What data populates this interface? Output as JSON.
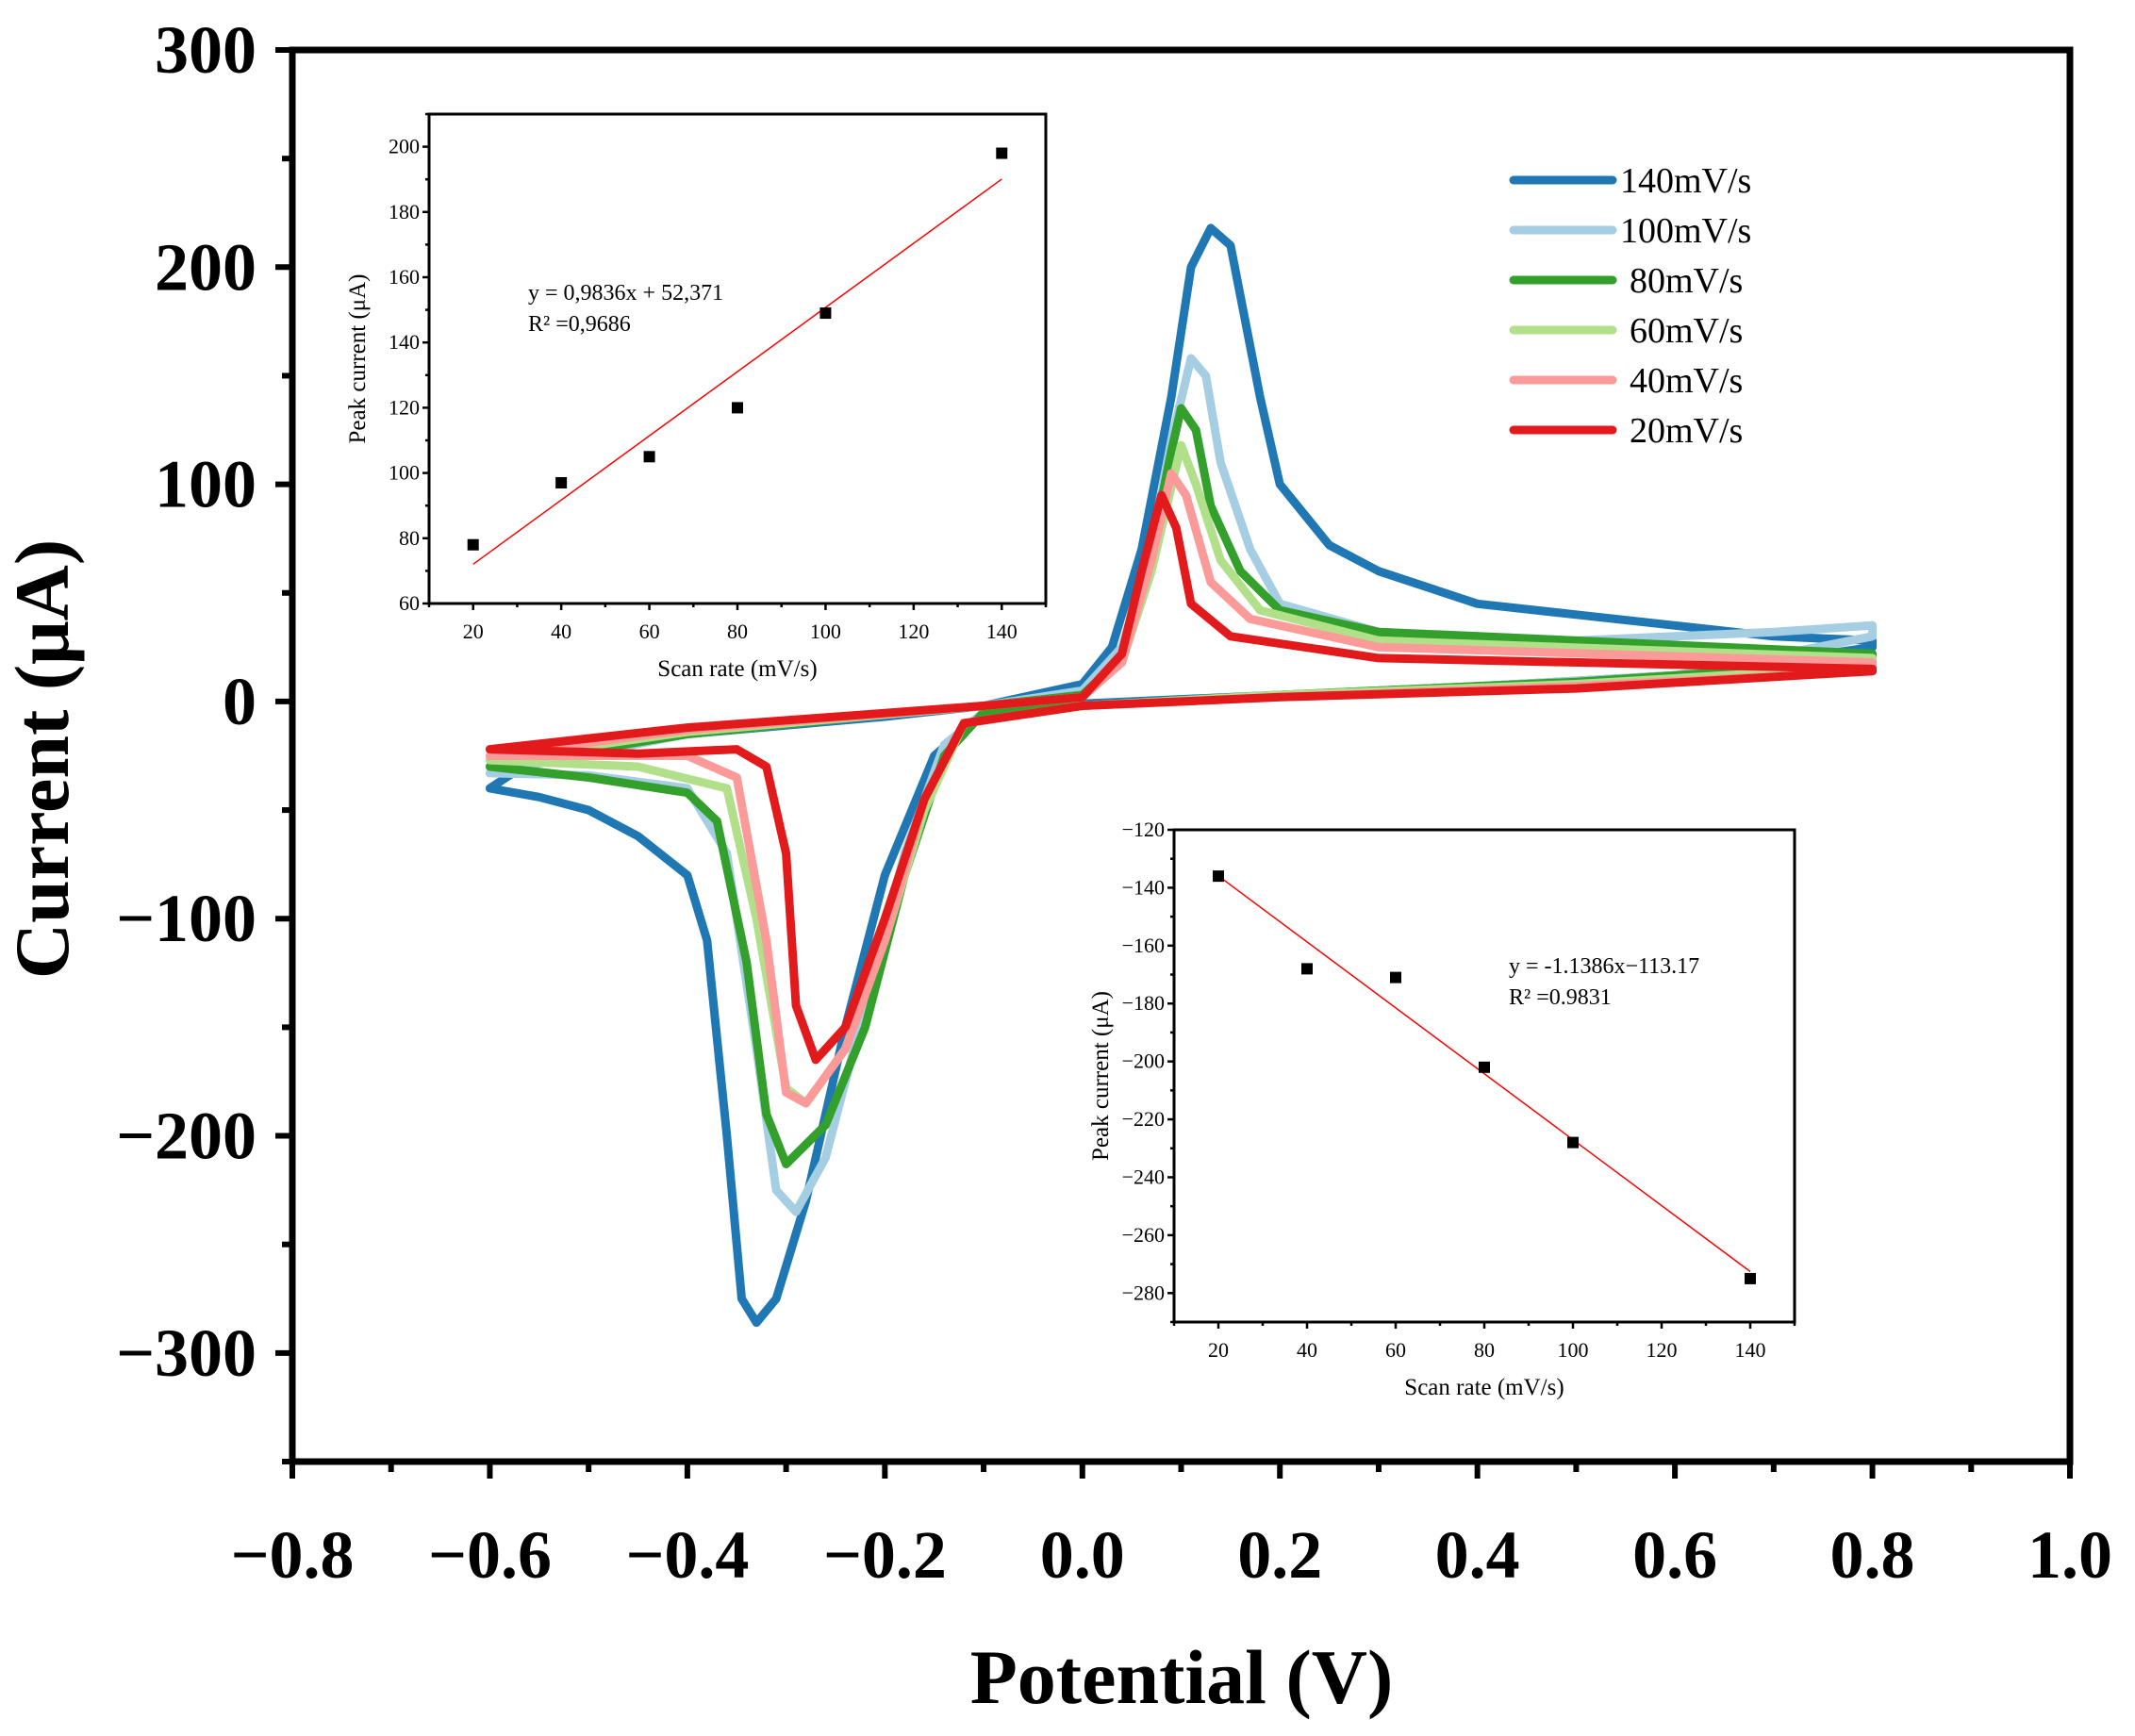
{
  "chart_data": [
    {
      "type": "line",
      "title": "",
      "xlabel": "Potential (V)",
      "ylabel": "Current (μA)",
      "xlim": [
        -0.8,
        1.0
      ],
      "ylim": [
        -350,
        300
      ],
      "xticks": [
        -0.8,
        -0.6,
        -0.4,
        -0.2,
        0.0,
        0.2,
        0.4,
        0.6,
        0.8,
        1.0
      ],
      "xtick_labels": [
        "−0.8",
        "−0.6",
        "−0.4",
        "−0.2",
        "0.0",
        "0.2",
        "0.4",
        "0.6",
        "0.8",
        "1.0"
      ],
      "yticks": [
        -300,
        -200,
        -100,
        0,
        100,
        200,
        300
      ],
      "ytick_labels": [
        "−300",
        "−200",
        "−100",
        "0",
        "100",
        "200",
        "300"
      ],
      "grid": false,
      "legend_position": "top-right",
      "series": [
        {
          "name": "140mV/s",
          "color": "#1f77b4",
          "points": [
            [
              -0.6,
              -40
            ],
            [
              -0.55,
              -25
            ],
            [
              -0.4,
              -15
            ],
            [
              -0.2,
              -7
            ],
            [
              -0.1,
              -2
            ],
            [
              0,
              8
            ],
            [
              0.03,
              25
            ],
            [
              0.06,
              70
            ],
            [
              0.09,
              140
            ],
            [
              0.11,
              200
            ],
            [
              0.13,
              218
            ],
            [
              0.15,
              210
            ],
            [
              0.18,
              140
            ],
            [
              0.2,
              100
            ],
            [
              0.25,
              72
            ],
            [
              0.3,
              60
            ],
            [
              0.4,
              45
            ],
            [
              0.5,
              40
            ],
            [
              0.6,
              35
            ],
            [
              0.7,
              30
            ],
            [
              0.8,
              28
            ],
            [
              0.8,
              25
            ],
            [
              0.6,
              12
            ],
            [
              0.4,
              7
            ],
            [
              0.2,
              3
            ],
            [
              0,
              -1
            ],
            [
              -0.1,
              -5
            ],
            [
              -0.15,
              -25
            ],
            [
              -0.2,
              -80
            ],
            [
              -0.24,
              -150
            ],
            [
              -0.28,
              -230
            ],
            [
              -0.31,
              -275
            ],
            [
              -0.33,
              -286
            ],
            [
              -0.345,
              -275
            ],
            [
              -0.36,
              -200
            ],
            [
              -0.38,
              -110
            ],
            [
              -0.4,
              -80
            ],
            [
              -0.45,
              -62
            ],
            [
              -0.5,
              -50
            ],
            [
              -0.55,
              -44
            ],
            [
              -0.6,
              -40
            ]
          ]
        },
        {
          "name": "100mV/s",
          "color": "#a6cee3",
          "points": [
            [
              -0.6,
              -33
            ],
            [
              -0.4,
              -15
            ],
            [
              -0.2,
              -6
            ],
            [
              -0.1,
              -2
            ],
            [
              0,
              5
            ],
            [
              0.04,
              25
            ],
            [
              0.07,
              70
            ],
            [
              0.09,
              120
            ],
            [
              0.11,
              158
            ],
            [
              0.125,
              150
            ],
            [
              0.14,
              110
            ],
            [
              0.17,
              70
            ],
            [
              0.2,
              45
            ],
            [
              0.3,
              32
            ],
            [
              0.5,
              28
            ],
            [
              0.7,
              32
            ],
            [
              0.8,
              35
            ],
            [
              0.8,
              30
            ],
            [
              0.6,
              12
            ],
            [
              0.4,
              7
            ],
            [
              0.2,
              3
            ],
            [
              0,
              -2
            ],
            [
              -0.1,
              -5
            ],
            [
              -0.14,
              -20
            ],
            [
              -0.18,
              -70
            ],
            [
              -0.22,
              -140
            ],
            [
              -0.26,
              -210
            ],
            [
              -0.29,
              -235
            ],
            [
              -0.31,
              -225
            ],
            [
              -0.33,
              -160
            ],
            [
              -0.36,
              -70
            ],
            [
              -0.4,
              -40
            ],
            [
              -0.5,
              -34
            ],
            [
              -0.6,
              -33
            ]
          ]
        },
        {
          "name": "80mV/s",
          "color": "#33a02c",
          "points": [
            [
              -0.6,
              -30
            ],
            [
              -0.4,
              -15
            ],
            [
              -0.2,
              -6
            ],
            [
              -0.1,
              -2
            ],
            [
              0,
              3
            ],
            [
              0.04,
              20
            ],
            [
              0.07,
              70
            ],
            [
              0.09,
              115
            ],
            [
              0.1,
              135
            ],
            [
              0.115,
              125
            ],
            [
              0.13,
              90
            ],
            [
              0.16,
              60
            ],
            [
              0.2,
              42
            ],
            [
              0.3,
              32
            ],
            [
              0.5,
              28
            ],
            [
              0.8,
              22
            ],
            [
              0.8,
              18
            ],
            [
              0.5,
              9
            ],
            [
              0.2,
              3
            ],
            [
              0,
              -2
            ],
            [
              -0.1,
              -5
            ],
            [
              -0.14,
              -25
            ],
            [
              -0.18,
              -80
            ],
            [
              -0.22,
              -150
            ],
            [
              -0.26,
              -195
            ],
            [
              -0.3,
              -213
            ],
            [
              -0.32,
              -190
            ],
            [
              -0.34,
              -120
            ],
            [
              -0.37,
              -55
            ],
            [
              -0.4,
              -42
            ],
            [
              -0.5,
              -35
            ],
            [
              -0.6,
              -30
            ]
          ]
        },
        {
          "name": "60mV/s",
          "color": "#b2df8a",
          "points": [
            [
              -0.6,
              -27
            ],
            [
              -0.4,
              -14
            ],
            [
              -0.1,
              -2
            ],
            [
              0,
              2
            ],
            [
              0.04,
              18
            ],
            [
              0.07,
              60
            ],
            [
              0.1,
              118
            ],
            [
              0.115,
              100
            ],
            [
              0.14,
              65
            ],
            [
              0.18,
              42
            ],
            [
              0.3,
              28
            ],
            [
              0.8,
              20
            ],
            [
              0.8,
              16
            ],
            [
              0.5,
              8
            ],
            [
              0.2,
              3
            ],
            [
              0,
              -2
            ],
            [
              -0.12,
              -10
            ],
            [
              -0.16,
              -50
            ],
            [
              -0.2,
              -110
            ],
            [
              -0.24,
              -160
            ],
            [
              -0.28,
              -185
            ],
            [
              -0.3,
              -178
            ],
            [
              -0.33,
              -100
            ],
            [
              -0.36,
              -40
            ],
            [
              -0.45,
              -30
            ],
            [
              -0.6,
              -27
            ]
          ]
        },
        {
          "name": "40mV/s",
          "color": "#fb9a99",
          "points": [
            [
              -0.6,
              -25
            ],
            [
              -0.4,
              -13
            ],
            [
              -0.1,
              -2
            ],
            [
              0,
              2
            ],
            [
              0.04,
              18
            ],
            [
              0.07,
              65
            ],
            [
              0.09,
              105
            ],
            [
              0.105,
              95
            ],
            [
              0.13,
              55
            ],
            [
              0.17,
              38
            ],
            [
              0.3,
              25
            ],
            [
              0.8,
              18
            ],
            [
              0.8,
              14
            ],
            [
              0.5,
              7
            ],
            [
              0.2,
              2
            ],
            [
              0,
              -2
            ],
            [
              -0.12,
              -10
            ],
            [
              -0.16,
              -45
            ],
            [
              -0.2,
              -110
            ],
            [
              -0.24,
              -160
            ],
            [
              -0.28,
              -185
            ],
            [
              -0.3,
              -180
            ],
            [
              -0.32,
              -110
            ],
            [
              -0.35,
              -35
            ],
            [
              -0.4,
              -25
            ],
            [
              -0.6,
              -25
            ]
          ]
        },
        {
          "name": "20mV/s",
          "color": "#e31a1c",
          "points": [
            [
              -0.6,
              -22
            ],
            [
              -0.4,
              -12
            ],
            [
              -0.1,
              -2
            ],
            [
              0,
              2
            ],
            [
              0.04,
              22
            ],
            [
              0.06,
              60
            ],
            [
              0.08,
              95
            ],
            [
              0.095,
              80
            ],
            [
              0.11,
              45
            ],
            [
              0.15,
              30
            ],
            [
              0.3,
              20
            ],
            [
              0.8,
              15
            ],
            [
              0.8,
              14
            ],
            [
              0.5,
              6
            ],
            [
              0.2,
              2
            ],
            [
              0,
              -2
            ],
            [
              -0.12,
              -10
            ],
            [
              -0.16,
              -45
            ],
            [
              -0.2,
              -100
            ],
            [
              -0.24,
              -150
            ],
            [
              -0.27,
              -165
            ],
            [
              -0.29,
              -140
            ],
            [
              -0.3,
              -70
            ],
            [
              -0.32,
              -30
            ],
            [
              -0.35,
              -22
            ],
            [
              -0.45,
              -24
            ],
            [
              -0.6,
              -22
            ]
          ]
        }
      ]
    },
    {
      "type": "scatter",
      "title": "",
      "xlabel": "Scan rate (mV/s)",
      "ylabel": "Peak current (μA)",
      "xlim": [
        10,
        150
      ],
      "ylim": [
        60,
        210
      ],
      "xticks": [
        20,
        40,
        60,
        80,
        100,
        120,
        140
      ],
      "yticks": [
        60,
        80,
        100,
        120,
        140,
        160,
        180,
        200
      ],
      "x": [
        20,
        40,
        60,
        80,
        100,
        140
      ],
      "y": [
        78,
        97,
        105,
        120,
        149,
        198
      ],
      "marker_color": "#000000",
      "fit": {
        "slope": 0.9836,
        "intercept": 52.371,
        "color": "#ff0000",
        "x_range": [
          20,
          140
        ]
      },
      "annotations": [
        "y = 0,9836x + 52,371",
        "R² =0,9686"
      ]
    },
    {
      "type": "scatter",
      "title": "",
      "xlabel": "Scan rate (mV/s)",
      "ylabel": "Peak current (μA)",
      "xlim": [
        10,
        150
      ],
      "ylim": [
        -290,
        -120
      ],
      "xticks": [
        20,
        40,
        60,
        80,
        100,
        120,
        140
      ],
      "yticks": [
        -280,
        -260,
        -240,
        -220,
        -200,
        -180,
        -160,
        -140,
        -120
      ],
      "x": [
        20,
        40,
        60,
        80,
        100,
        140
      ],
      "y": [
        -136,
        -168,
        -171,
        -202,
        -228,
        -275
      ],
      "marker_color": "#000000",
      "fit": {
        "slope": -1.1386,
        "intercept": -113.17,
        "color": "#ff0000",
        "x_range": [
          20,
          140
        ]
      },
      "annotations": [
        "y = -1.1386x−113.17",
        "R² =0.9831"
      ]
    }
  ]
}
